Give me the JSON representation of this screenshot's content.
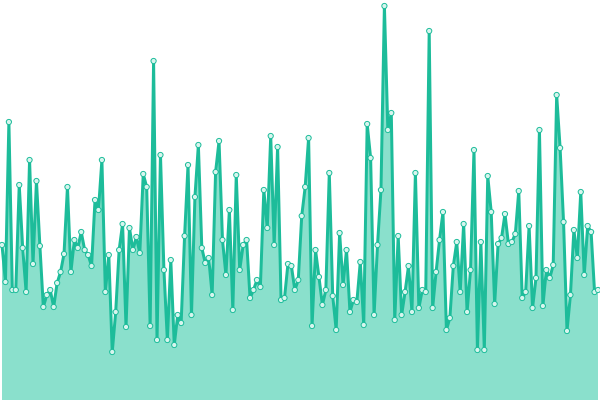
{
  "chart_data": {
    "type": "area",
    "categories": [
      null,
      null,
      null,
      null,
      null,
      null,
      null,
      null,
      null,
      null,
      null,
      null,
      null,
      null,
      null,
      null,
      null,
      null,
      null,
      null,
      null,
      null,
      null,
      null,
      null,
      null,
      null,
      null,
      null,
      null,
      null,
      null,
      null,
      null,
      null,
      null,
      null,
      null,
      null,
      null,
      null,
      null,
      null,
      null,
      null,
      null,
      null,
      null,
      null,
      null,
      null,
      null,
      null,
      null,
      null,
      null,
      null,
      null,
      null,
      null,
      null,
      null,
      null,
      null,
      null,
      null,
      null,
      null,
      null,
      null,
      null,
      null,
      null,
      null,
      null,
      null,
      null,
      null,
      null,
      null,
      null,
      null,
      null,
      null,
      null,
      null,
      null,
      null,
      null,
      null,
      null,
      null,
      null,
      null,
      null,
      null,
      null,
      null,
      null,
      null,
      null,
      null,
      null,
      null,
      null,
      null,
      null,
      null,
      null,
      null,
      null,
      null,
      null,
      null,
      null,
      null,
      null,
      null,
      null,
      null,
      null,
      null,
      null,
      null,
      null,
      null,
      null,
      null,
      null,
      null,
      null,
      null,
      null,
      null,
      null,
      null,
      null,
      null,
      null,
      null,
      null,
      null,
      null,
      null,
      null,
      null,
      null,
      null,
      null,
      null,
      null,
      null,
      null,
      null,
      null,
      null,
      null,
      null,
      null,
      null,
      null,
      null,
      null,
      null,
      null,
      null,
      null,
      null,
      null,
      null,
      null,
      null,
      null,
      null
    ],
    "values": [
      155,
      118,
      278,
      110,
      110,
      215,
      152,
      108,
      240,
      136,
      219,
      154,
      93,
      105,
      110,
      93,
      117,
      128,
      146,
      213,
      128,
      160,
      152,
      168,
      150,
      145,
      134,
      200,
      190,
      240,
      108,
      145,
      48,
      88,
      150,
      176,
      73,
      172,
      150,
      163,
      147,
      226,
      213,
      74,
      339,
      60,
      245,
      130,
      60,
      140,
      55,
      85,
      77,
      164,
      235,
      85,
      203,
      255,
      152,
      137,
      142,
      105,
      228,
      259,
      160,
      125,
      190,
      90,
      225,
      130,
      155,
      160,
      102,
      110,
      120,
      113,
      210,
      172,
      264,
      155,
      253,
      100,
      102,
      136,
      134,
      110,
      120,
      184,
      213,
      262,
      74,
      150,
      123,
      95,
      110,
      227,
      104,
      70,
      167,
      115,
      150,
      88,
      100,
      98,
      138,
      75,
      276,
      242,
      85,
      155,
      210,
      394,
      270,
      287,
      80,
      164,
      85,
      108,
      134,
      88,
      227,
      92,
      110,
      108,
      369,
      92,
      128,
      160,
      188,
      70,
      82,
      134,
      158,
      108,
      176,
      88,
      130,
      250,
      50,
      158,
      50,
      224,
      188,
      96,
      156,
      162,
      186,
      156,
      158,
      166,
      209,
      102,
      108,
      174,
      92,
      122,
      270,
      94,
      130,
      122,
      135,
      305,
      252,
      178,
      69,
      105,
      170,
      142,
      208,
      125,
      174,
      168,
      108,
      110
    ],
    "color": "#1dbc9a",
    "area_color": "#8ae0cc",
    "ylim": [
      0,
      400
    ]
  }
}
